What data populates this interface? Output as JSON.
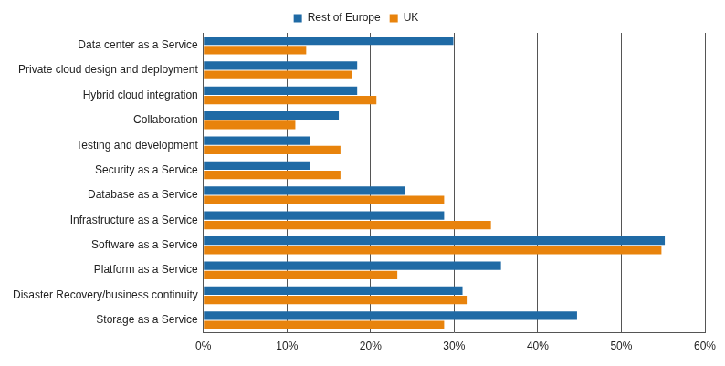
{
  "chart_data": {
    "type": "bar",
    "orientation": "horizontal",
    "grid": true,
    "legend": "top",
    "categories": [
      "Data center as a Service",
      "Private cloud design and deployment",
      "Hybrid cloud integration",
      "Collaboration",
      "Testing and development",
      "Security as a Service",
      "Database as a Service",
      "Infrastructure as a Service",
      "Software as a Service",
      "Platform as a Service",
      "Disaster Recovery/business continuity",
      "Storage as a Service"
    ],
    "series": [
      {
        "name": "Rest of Europe",
        "color": "#1f6aa5",
        "values": [
          29.9,
          18.4,
          18.4,
          16.2,
          12.7,
          12.7,
          24.1,
          28.8,
          55.2,
          35.6,
          31.0,
          44.7
        ]
      },
      {
        "name": "UK",
        "color": "#e8830c",
        "values": [
          12.3,
          17.8,
          20.7,
          11.0,
          16.4,
          16.4,
          28.8,
          34.4,
          54.8,
          23.2,
          31.5,
          28.8
        ]
      }
    ],
    "xlim": [
      0,
      60
    ],
    "xticks": [
      {
        "value": 0,
        "label": "0%"
      },
      {
        "value": 10,
        "label": "10%"
      },
      {
        "value": 20,
        "label": "20%"
      },
      {
        "value": 30,
        "label": "30%"
      },
      {
        "value": 40,
        "label": "40%"
      },
      {
        "value": 50,
        "label": "50%"
      },
      {
        "value": 60,
        "label": "60%"
      }
    ]
  }
}
